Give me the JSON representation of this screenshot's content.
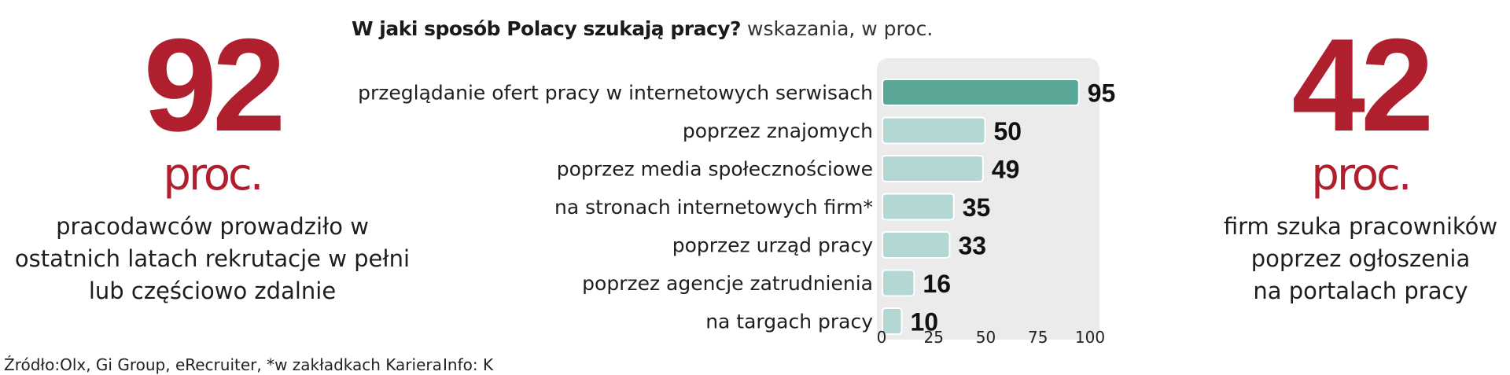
{
  "left_stat": {
    "number": "92",
    "unit": "proc.",
    "description": [
      "pracodawców prowadziło w",
      "ostatnich latach rekrutacje w pełni",
      "lub częściowo zdalnie"
    ]
  },
  "right_stat": {
    "number": "42",
    "unit": "proc.",
    "description": [
      "firm szuka pracowników",
      "poprzez ogłoszenia",
      "na portalach pracy"
    ]
  },
  "chart_data": {
    "type": "bar",
    "orientation": "horizontal",
    "title": "W jaki sposób Polacy szukają pracy?",
    "subtitle": "wskazania, w proc.",
    "categories": [
      "przeglądanie ofert pracy w internetowych serwisach",
      "poprzez znajomych",
      "poprzez media społecznościowe",
      "na stronach internetowych firm*",
      "poprzez urząd pracy",
      "poprzez  agencje zatrudnienia",
      "na targach pracy"
    ],
    "values": [
      95,
      50,
      49,
      35,
      33,
      16,
      10
    ],
    "xlim": [
      0,
      100
    ],
    "xticks": [
      0,
      25,
      50,
      75,
      100
    ],
    "highlight_color": "#5aa797",
    "bar_color": "#b3d7d2",
    "background_color": "#ebebeb",
    "grid": false
  },
  "footer": {
    "source": "Źródło:Olx, Gi Group, eRecruiter, *w zakładkach Kariera",
    "info": "Info: K"
  }
}
